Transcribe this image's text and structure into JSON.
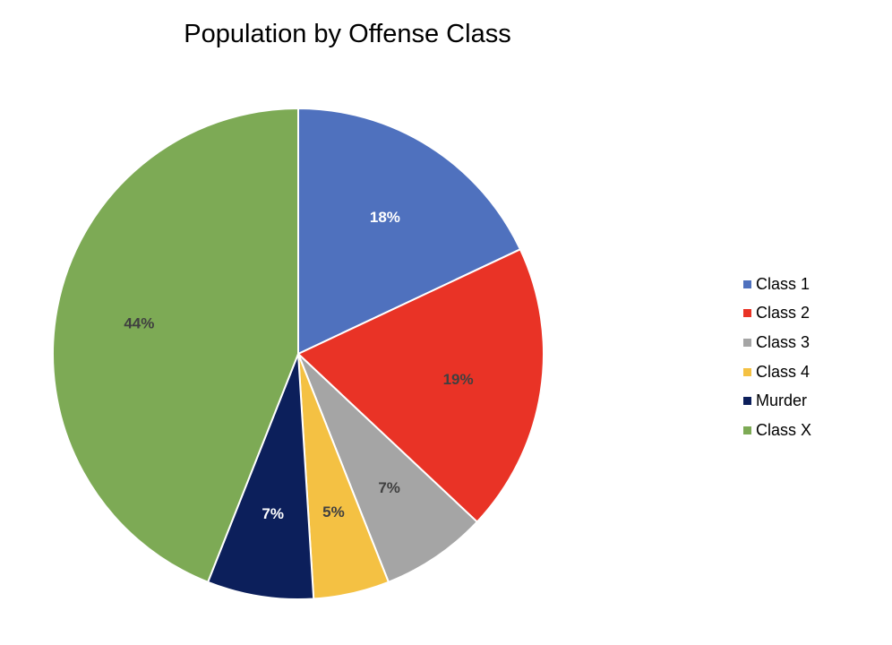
{
  "chart_data": {
    "type": "pie",
    "title": "Population by Offense Class",
    "categories": [
      "Class 1",
      "Class 2",
      "Class 3",
      "Class 4",
      "Murder",
      "Class X"
    ],
    "values": [
      18,
      19,
      7,
      5,
      7,
      44
    ],
    "labels": [
      "18%",
      "19%",
      "7%",
      "5%",
      "7%",
      "44%"
    ],
    "unit": "%",
    "colors": [
      "#4F71BE",
      "#E93326",
      "#A5A5A5",
      "#F4C143",
      "#0C1F5B",
      "#7DAA55"
    ],
    "label_colors": [
      "#ffffff",
      "#404040",
      "#404040",
      "#404040",
      "#ffffff",
      "#404040"
    ],
    "start": "12 o'clock",
    "direction": "clockwise",
    "legend_position": "right"
  }
}
